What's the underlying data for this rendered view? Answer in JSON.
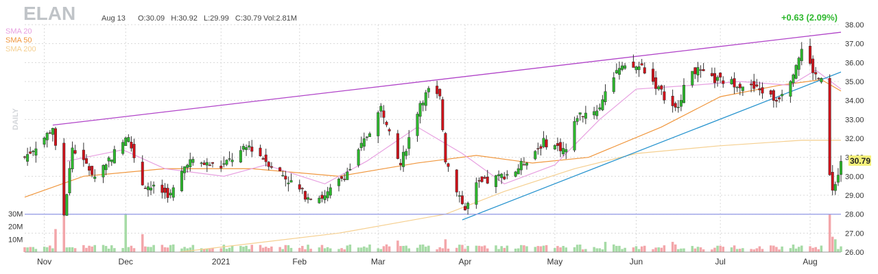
{
  "header": {
    "ticker": "ELAN",
    "date": "Aug 13",
    "ohlc_text": "O:30.09   H:30.92   L:29.99   C:30.79",
    "volume_text": "Vol:2.81M",
    "change_text": "+0.63 (2.09%)"
  },
  "legend": [
    {
      "label": "SMA 20",
      "color": "#e79fe0"
    },
    {
      "label": "SMA 50",
      "color": "#f0963c"
    },
    {
      "label": "SMA 200",
      "color": "#f5cf8f"
    }
  ],
  "timeframe_label": "DAILY",
  "last_price_label": "30.79",
  "colors": {
    "up": "#2eb82e",
    "down": "#d0121b",
    "vol_up": "#a6dba6",
    "vol_down": "#f3a6aa"
  },
  "chart_data": {
    "type": "candlestick",
    "y_axis": {
      "min": 26,
      "max": 38,
      "ticks": [
        "26.00",
        "27.00",
        "28.00",
        "29.00",
        "30.00",
        "31.00",
        "32.00",
        "33.00",
        "34.00",
        "35.00",
        "36.00",
        "37.00",
        "38.00"
      ],
      "position": "right"
    },
    "volume_axis": {
      "ticks": [
        "10M",
        "20M",
        "30M"
      ],
      "position": "left"
    },
    "x_axis": {
      "ticks": [
        {
          "label": "Nov",
          "date": "2020-11-02"
        },
        {
          "label": "Dec",
          "date": "2020-12-01"
        },
        {
          "label": "2021",
          "date": "2021-01-04"
        },
        {
          "label": "Feb",
          "date": "2021-02-01"
        },
        {
          "label": "Mar",
          "date": "2021-03-01"
        },
        {
          "label": "Apr",
          "date": "2021-04-01"
        },
        {
          "label": "May",
          "date": "2021-05-03"
        },
        {
          "label": "Jun",
          "date": "2021-06-01"
        },
        {
          "label": "Jul",
          "date": "2021-07-01"
        },
        {
          "label": "Aug",
          "date": "2021-08-02"
        }
      ]
    },
    "ohlc_path": [
      [
        "2020-10-26",
        31.0
      ],
      [
        "2020-11-03",
        32.2
      ],
      [
        "2020-11-05",
        32.6
      ],
      [
        "2020-11-09",
        28.0
      ],
      [
        "2020-11-12",
        31.5
      ],
      [
        "2020-11-20",
        30.0
      ],
      [
        "2020-11-30",
        31.8
      ],
      [
        "2020-12-02",
        32.0
      ],
      [
        "2020-12-07",
        29.6
      ],
      [
        "2020-12-17",
        29.0
      ],
      [
        "2020-12-23",
        30.8
      ],
      [
        "2021-01-04",
        30.5
      ],
      [
        "2021-01-14",
        31.6
      ],
      [
        "2021-01-25",
        30.2
      ],
      [
        "2021-02-03",
        29.0
      ],
      [
        "2021-02-10",
        28.9
      ],
      [
        "2021-02-19",
        30.4
      ],
      [
        "2021-03-02",
        33.6
      ],
      [
        "2021-03-05",
        32.6
      ],
      [
        "2021-03-09",
        30.6
      ],
      [
        "2021-03-16",
        33.9
      ],
      [
        "2021-03-19",
        34.5
      ],
      [
        "2021-03-23",
        34.1
      ],
      [
        "2021-03-25",
        30.9
      ],
      [
        "2021-04-01",
        28.2
      ],
      [
        "2021-04-05",
        29.5
      ],
      [
        "2021-04-19",
        30.3
      ],
      [
        "2021-04-29",
        31.8
      ],
      [
        "2021-05-07",
        31.4
      ],
      [
        "2021-05-11",
        33.2
      ],
      [
        "2021-05-19",
        33.6
      ],
      [
        "2021-05-21",
        34.6
      ],
      [
        "2021-05-25",
        35.6
      ],
      [
        "2021-06-03",
        35.8
      ],
      [
        "2021-06-09",
        34.6
      ],
      [
        "2021-06-15",
        33.5
      ],
      [
        "2021-06-21",
        35.7
      ],
      [
        "2021-06-28",
        35.1
      ],
      [
        "2021-07-07",
        34.9
      ],
      [
        "2021-07-16",
        34.5
      ],
      [
        "2021-07-21",
        34.0
      ],
      [
        "2021-07-26",
        35.2
      ],
      [
        "2021-07-30",
        36.7
      ],
      [
        "2021-08-04",
        35.3
      ],
      [
        "2021-08-06",
        35.0
      ],
      [
        "2021-08-09",
        30.0
      ],
      [
        "2021-08-10",
        29.4
      ],
      [
        "2021-08-12",
        30.2
      ],
      [
        "2021-08-13",
        30.79
      ]
    ],
    "sma20_path": [
      [
        "2020-11-10",
        30.8
      ],
      [
        "2020-11-30",
        31.4
      ],
      [
        "2020-12-15",
        30.4
      ],
      [
        "2021-01-05",
        30.0
      ],
      [
        "2021-01-20",
        30.6
      ],
      [
        "2021-02-10",
        29.6
      ],
      [
        "2021-02-25",
        30.8
      ],
      [
        "2021-03-15",
        32.6
      ],
      [
        "2021-03-31",
        31.2
      ],
      [
        "2021-04-15",
        29.6
      ],
      [
        "2021-05-03",
        30.6
      ],
      [
        "2021-05-19",
        33.0
      ],
      [
        "2021-06-01",
        34.6
      ],
      [
        "2021-06-21",
        34.8
      ],
      [
        "2021-07-08",
        35.0
      ],
      [
        "2021-07-26",
        34.8
      ],
      [
        "2021-08-04",
        35.6
      ],
      [
        "2021-08-13",
        34.6
      ]
    ],
    "sma50_path": [
      [
        "2020-10-26",
        28.9
      ],
      [
        "2020-11-16",
        30.0
      ],
      [
        "2020-12-15",
        30.4
      ],
      [
        "2021-01-15",
        30.4
      ],
      [
        "2021-02-15",
        30.0
      ],
      [
        "2021-03-15",
        30.7
      ],
      [
        "2021-04-05",
        31.1
      ],
      [
        "2021-04-25",
        30.7
      ],
      [
        "2021-05-15",
        31.0
      ],
      [
        "2021-06-10",
        32.6
      ],
      [
        "2021-07-01",
        34.2
      ],
      [
        "2021-07-22",
        34.8
      ],
      [
        "2021-08-06",
        35.1
      ],
      [
        "2021-08-13",
        34.5
      ]
    ],
    "sma200_path": [
      [
        "2020-12-20",
        26.0
      ],
      [
        "2021-02-15",
        27.0
      ],
      [
        "2021-03-25",
        28.0
      ],
      [
        "2021-04-15",
        29.2
      ],
      [
        "2021-05-10",
        30.4
      ],
      [
        "2021-06-01",
        31.2
      ],
      [
        "2021-06-30",
        31.6
      ],
      [
        "2021-07-30",
        31.9
      ],
      [
        "2021-08-13",
        31.9
      ]
    ],
    "trendlines": [
      {
        "color": "#b043c8",
        "from": [
          "2020-11-05",
          32.7
        ],
        "to": [
          "2021-08-13",
          37.6
        ]
      },
      {
        "color": "#2a95cf",
        "from": [
          "2021-03-31",
          27.7
        ],
        "to": [
          "2021-08-13",
          35.5
        ]
      },
      {
        "color": "#9aa0e6",
        "from": [
          "2020-10-26",
          28.0
        ],
        "to": [
          "2021-08-13",
          28.0
        ]
      }
    ],
    "volume_spikes": [
      [
        "2020-11-09",
        30
      ],
      [
        "2020-11-06",
        18
      ],
      [
        "2020-12-01",
        30
      ],
      [
        "2020-12-07",
        14
      ],
      [
        "2021-03-08",
        9
      ],
      [
        "2021-03-25",
        10
      ],
      [
        "2021-05-21",
        8
      ],
      [
        "2021-06-14",
        8
      ],
      [
        "2021-08-09",
        30
      ],
      [
        "2021-08-10",
        12
      ],
      [
        "2021-08-11",
        10
      ]
    ],
    "volume_base": 4
  }
}
